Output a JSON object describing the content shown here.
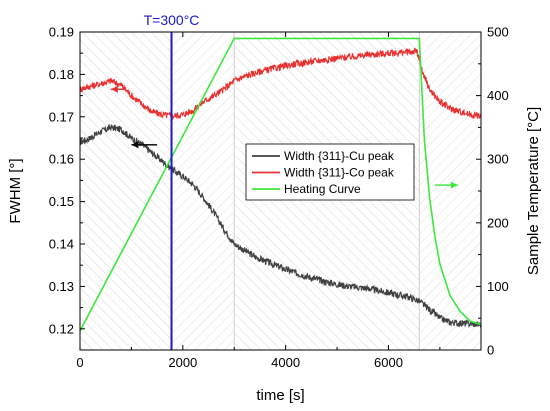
{
  "chart_data": {
    "type": "line",
    "xlabel": "time [s]",
    "ylabel_left": "FWHM [°]",
    "ylabel_right": "Sample Temperature [°C]",
    "xlim": [
      0,
      7800
    ],
    "ylim_left": [
      0.115,
      0.19
    ],
    "ylim_right": [
      0,
      500
    ],
    "x_ticks": [
      0,
      2000,
      4000,
      6000
    ],
    "y_left_ticks": [
      0.12,
      0.13,
      0.14,
      0.15,
      0.16,
      0.17,
      0.18,
      0.19
    ],
    "y_right_ticks": [
      0,
      100,
      200,
      300,
      400,
      500
    ],
    "legend_position": "center",
    "annotation": {
      "text": "T=300°C",
      "x": 1780,
      "color": "#1a1acc"
    },
    "series": [
      {
        "name": "Width {311}-Cu peak",
        "axis": "left",
        "color": "#404040",
        "noise": 0.0008,
        "x": [
          0,
          200,
          400,
          600,
          800,
          1000,
          1200,
          1400,
          1600,
          1800,
          2000,
          2200,
          2400,
          2600,
          2800,
          3000,
          3200,
          3400,
          3600,
          3800,
          4000,
          4200,
          4400,
          4600,
          4800,
          5000,
          5200,
          5400,
          5600,
          5800,
          6000,
          6200,
          6400,
          6600,
          6800,
          7000,
          7200,
          7400,
          7600,
          7800
        ],
        "y": [
          0.164,
          0.165,
          0.1665,
          0.1675,
          0.167,
          0.165,
          0.1635,
          0.1615,
          0.1595,
          0.1575,
          0.156,
          0.154,
          0.151,
          0.1475,
          0.1435,
          0.14,
          0.1385,
          0.137,
          0.136,
          0.135,
          0.134,
          0.1332,
          0.1324,
          0.1317,
          0.131,
          0.1305,
          0.1301,
          0.1298,
          0.1295,
          0.129,
          0.1285,
          0.128,
          0.1275,
          0.1265,
          0.1245,
          0.1225,
          0.1215,
          0.1213,
          0.1212,
          0.121
        ]
      },
      {
        "name": "Width {311}-Co peak",
        "axis": "left",
        "color": "#e83232",
        "noise": 0.0008,
        "x": [
          0,
          200,
          400,
          600,
          800,
          1000,
          1200,
          1400,
          1600,
          1800,
          2000,
          2200,
          2400,
          2600,
          2800,
          3000,
          3200,
          3400,
          3600,
          3800,
          4000,
          4200,
          4400,
          4600,
          4800,
          5000,
          5200,
          5400,
          5600,
          5800,
          6000,
          6200,
          6400,
          6550,
          6650,
          6800,
          7000,
          7200,
          7400,
          7600,
          7800
        ],
        "y": [
          0.1765,
          0.1772,
          0.1778,
          0.1785,
          0.1775,
          0.175,
          0.173,
          0.1712,
          0.1705,
          0.1702,
          0.1705,
          0.1715,
          0.1735,
          0.175,
          0.1765,
          0.1785,
          0.1795,
          0.1803,
          0.181,
          0.1815,
          0.182,
          0.1825,
          0.1828,
          0.1832,
          0.1835,
          0.1838,
          0.1841,
          0.1843,
          0.1846,
          0.1848,
          0.185,
          0.1851,
          0.1853,
          0.1855,
          0.181,
          0.1765,
          0.1735,
          0.172,
          0.1712,
          0.1705,
          0.1702
        ]
      },
      {
        "name": "Heating Curve",
        "axis": "right",
        "color": "#3ce83c",
        "noise": 0,
        "x": [
          0,
          3000,
          6600,
          6700,
          6800,
          6900,
          7000,
          7200,
          7400,
          7600,
          7800
        ],
        "y": [
          30,
          490,
          490,
          330,
          240,
          180,
          135,
          85,
          60,
          45,
          40
        ]
      }
    ],
    "arrows": [
      {
        "x0": 900,
        "x1": 600,
        "y": 0.1765,
        "axis": "left",
        "color": "#e83232"
      },
      {
        "x0": 1500,
        "x1": 1000,
        "y": 0.1634,
        "axis": "left",
        "color": "#000000"
      },
      {
        "x0": 6900,
        "x1": 7350,
        "y": 0.1539,
        "axis": "left",
        "color": "#3ce83c"
      }
    ]
  }
}
